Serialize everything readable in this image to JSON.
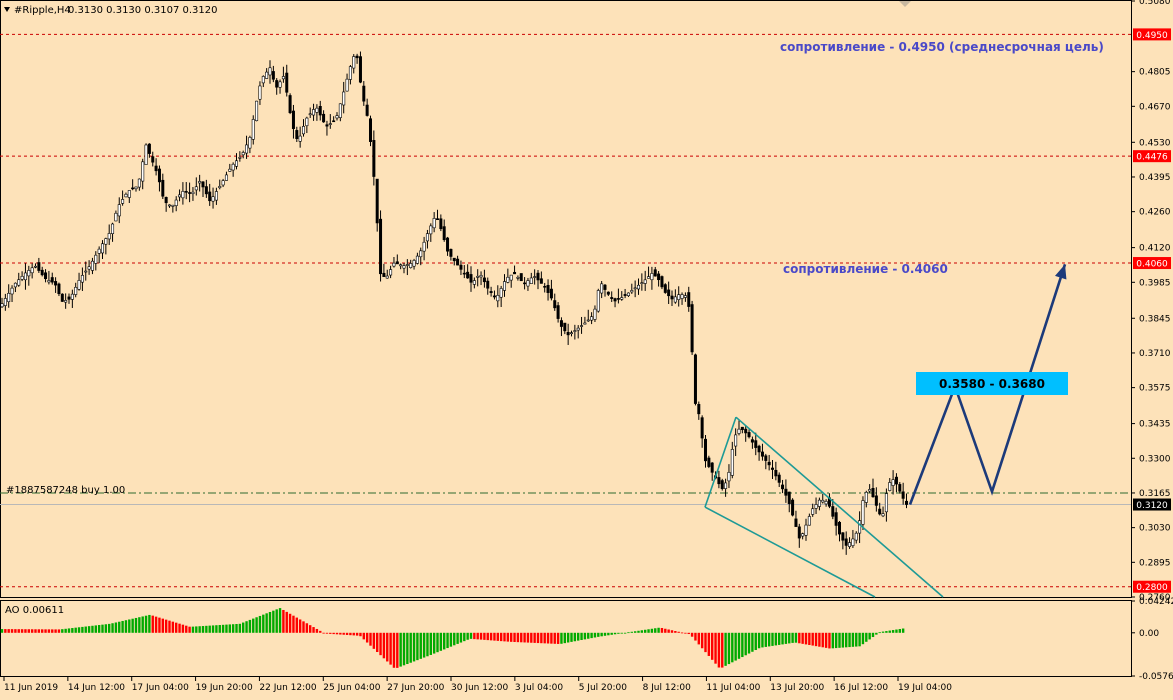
{
  "header": {
    "symbol": "#Ripple,H4",
    "ohlc": "0.3130 0.3130 0.3107 0.3120"
  },
  "colors": {
    "background": "#fde2b9",
    "text": "#000000",
    "bull": "#000000",
    "bear": "#000000",
    "level_line": "#cc0000",
    "level_badge": "#ff0000",
    "annotation_text": "#4a49c8",
    "forecast_arrow": "#1c3a7a",
    "channel": "#1e9a96",
    "target_box": "#00bfff",
    "ao_up": "#00aa00",
    "ao_down": "#ff0000"
  },
  "order_label": "#1887587248 buy 1.00",
  "annotations": {
    "resistance_1": "сопротивление - 0.4950 (среднесрочная цель)",
    "resistance_2": "сопротивление - 0.4060",
    "target_box": "0.3580 - 0.3680"
  },
  "chart_data": {
    "type": "candlestick",
    "timeframe": "H4",
    "ylim": [
      0.276,
      0.508
    ],
    "price_ticks": [
      "0.5080",
      "0.4805",
      "0.4670",
      "0.4530",
      "0.4395",
      "0.4260",
      "0.4120",
      "0.3985",
      "0.3845",
      "0.3710",
      "0.3575",
      "0.3435",
      "0.3300",
      "0.3165",
      "0.3030",
      "0.2895",
      "0.2760"
    ],
    "level_badges": [
      {
        "label": "0.4950",
        "price": 0.495
      },
      {
        "label": "0.4476",
        "price": 0.4476
      },
      {
        "label": "0.4060",
        "price": 0.406
      },
      {
        "label": "0.3120",
        "price": 0.312
      },
      {
        "label": "0.2800",
        "price": 0.28
      }
    ],
    "current_price": 0.312,
    "order_price": 0.3165,
    "x_labels": [
      "11 Jun 2019",
      "14 Jun 12:00",
      "17 Jun 04:00",
      "19 Jun 20:00",
      "22 Jun 12:00",
      "25 Jun 04:00",
      "27 Jun 20:00",
      "30 Jun 12:00",
      "3 Jul 04:00",
      "5 Jul 20:00",
      "8 Jul 12:00",
      "11 Jul 04:00",
      "13 Jul 20:00",
      "16 Jul 12:00",
      "19 Jul 04:00"
    ],
    "price_path": [
      [
        0,
        0.389
      ],
      [
        15,
        0.398
      ],
      [
        25,
        0.402
      ],
      [
        35,
        0.405
      ],
      [
        45,
        0.4
      ],
      [
        55,
        0.398
      ],
      [
        62,
        0.391
      ],
      [
        70,
        0.392
      ],
      [
        80,
        0.4
      ],
      [
        90,
        0.405
      ],
      [
        100,
        0.412
      ],
      [
        110,
        0.418
      ],
      [
        118,
        0.428
      ],
      [
        128,
        0.434
      ],
      [
        138,
        0.436
      ],
      [
        146,
        0.452
      ],
      [
        152,
        0.446
      ],
      [
        158,
        0.44
      ],
      [
        164,
        0.43
      ],
      [
        172,
        0.428
      ],
      [
        182,
        0.434
      ],
      [
        192,
        0.433
      ],
      [
        200,
        0.438
      ],
      [
        210,
        0.43
      ],
      [
        220,
        0.436
      ],
      [
        232,
        0.444
      ],
      [
        242,
        0.448
      ],
      [
        250,
        0.455
      ],
      [
        258,
        0.472
      ],
      [
        262,
        0.478
      ],
      [
        270,
        0.482
      ],
      [
        276,
        0.474
      ],
      [
        284,
        0.479
      ],
      [
        292,
        0.46
      ],
      [
        298,
        0.453
      ],
      [
        306,
        0.462
      ],
      [
        316,
        0.467
      ],
      [
        326,
        0.459
      ],
      [
        336,
        0.462
      ],
      [
        344,
        0.473
      ],
      [
        350,
        0.482
      ],
      [
        356,
        0.489
      ],
      [
        362,
        0.472
      ],
      [
        368,
        0.462
      ],
      [
        372,
        0.448
      ],
      [
        376,
        0.43
      ],
      [
        380,
        0.402
      ],
      [
        386,
        0.4
      ],
      [
        394,
        0.406
      ],
      [
        404,
        0.405
      ],
      [
        412,
        0.406
      ],
      [
        420,
        0.41
      ],
      [
        428,
        0.418
      ],
      [
        436,
        0.425
      ],
      [
        442,
        0.418
      ],
      [
        448,
        0.41
      ],
      [
        456,
        0.406
      ],
      [
        464,
        0.402
      ],
      [
        472,
        0.398
      ],
      [
        480,
        0.402
      ],
      [
        488,
        0.396
      ],
      [
        496,
        0.392
      ],
      [
        506,
        0.4
      ],
      [
        514,
        0.402
      ],
      [
        524,
        0.398
      ],
      [
        534,
        0.401
      ],
      [
        544,
        0.397
      ],
      [
        552,
        0.392
      ],
      [
        560,
        0.382
      ],
      [
        568,
        0.378
      ],
      [
        576,
        0.38
      ],
      [
        586,
        0.383
      ],
      [
        594,
        0.386
      ],
      [
        600,
        0.399
      ],
      [
        606,
        0.395
      ],
      [
        614,
        0.391
      ],
      [
        624,
        0.393
      ],
      [
        634,
        0.396
      ],
      [
        644,
        0.399
      ],
      [
        652,
        0.402
      ],
      [
        658,
        0.4
      ],
      [
        664,
        0.395
      ],
      [
        672,
        0.392
      ],
      [
        680,
        0.394
      ],
      [
        688,
        0.393
      ],
      [
        692,
        0.372
      ],
      [
        696,
        0.348
      ],
      [
        700,
        0.347
      ],
      [
        704,
        0.33
      ],
      [
        710,
        0.326
      ],
      [
        716,
        0.322
      ],
      [
        722,
        0.318
      ],
      [
        728,
        0.322
      ],
      [
        734,
        0.338
      ],
      [
        740,
        0.342
      ],
      [
        748,
        0.339
      ],
      [
        756,
        0.334
      ],
      [
        764,
        0.33
      ],
      [
        772,
        0.326
      ],
      [
        780,
        0.32
      ],
      [
        788,
        0.314
      ],
      [
        794,
        0.306
      ],
      [
        800,
        0.298
      ],
      [
        806,
        0.304
      ],
      [
        812,
        0.31
      ],
      [
        820,
        0.314
      ],
      [
        828,
        0.313
      ],
      [
        834,
        0.306
      ],
      [
        840,
        0.3
      ],
      [
        846,
        0.296
      ],
      [
        852,
        0.298
      ],
      [
        858,
        0.302
      ],
      [
        864,
        0.316
      ],
      [
        870,
        0.318
      ],
      [
        876,
        0.312
      ],
      [
        882,
        0.306
      ],
      [
        888,
        0.32
      ],
      [
        894,
        0.322
      ],
      [
        900,
        0.317
      ],
      [
        906,
        0.312
      ],
      [
        910,
        0.312
      ]
    ],
    "pattern": {
      "type": "falling channel",
      "upper_line": [
        [
          736,
          0.346
        ],
        [
          943,
          0.276
        ]
      ],
      "lower_line": [
        [
          705,
          0.311
        ],
        [
          875,
          0.276
        ]
      ]
    },
    "forecast_path": [
      [
        910,
        0.312
      ],
      [
        955,
        0.358
      ],
      [
        992,
        0.317
      ],
      [
        1065,
        0.4055
      ]
    ],
    "indicator": {
      "name": "AO",
      "value_label": "AO 0.00611",
      "ylim": [
        -0.05764,
        0.04242
      ],
      "ticks": [
        "0.04242",
        "0.00",
        "-0.05764"
      ],
      "path": [
        [
          0,
          0.005
        ],
        [
          60,
          0.0045
        ],
        [
          110,
          0.012
        ],
        [
          150,
          0.024
        ],
        [
          190,
          0.008
        ],
        [
          240,
          0.012
        ],
        [
          280,
          0.033
        ],
        [
          325,
          -0.001
        ],
        [
          360,
          -0.004
        ],
        [
          395,
          -0.048
        ],
        [
          430,
          -0.03
        ],
        [
          470,
          -0.008
        ],
        [
          510,
          -0.012
        ],
        [
          560,
          -0.015
        ],
        [
          600,
          -0.005
        ],
        [
          660,
          0.007
        ],
        [
          690,
          -0.002
        ],
        [
          720,
          -0.048
        ],
        [
          760,
          -0.02
        ],
        [
          795,
          -0.013
        ],
        [
          830,
          -0.021
        ],
        [
          860,
          -0.018
        ],
        [
          880,
          0.001
        ],
        [
          905,
          0.0061
        ]
      ]
    }
  }
}
